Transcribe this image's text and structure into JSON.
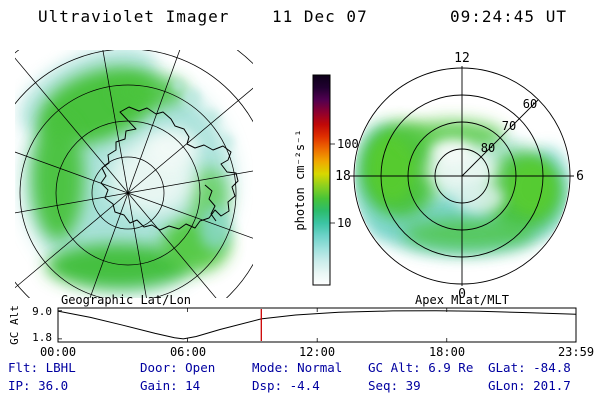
{
  "header": {
    "title": "Ultraviolet Imager",
    "date": "11 Dec 07",
    "time": "09:24:45 UT"
  },
  "colorbar": {
    "label": "photon cm⁻²s⁻¹",
    "colors_bottom_to_top": [
      "#ffffff",
      "#e8f6f4",
      "#c8ecea",
      "#9ce0dc",
      "#6cd2c8",
      "#3cc4a4",
      "#2cbc6c",
      "#48c438",
      "#8cd020",
      "#d8d800",
      "#f0a800",
      "#ee6c00",
      "#e03000",
      "#c00808",
      "#8c0030",
      "#500050",
      "#200030",
      "#0c0018"
    ]
  },
  "status": {
    "text_color": "#0000a0",
    "rows": [
      [
        "Flt: LBHL",
        "Door: Open",
        "Mode: Normal",
        "GC Alt: 6.9 Re",
        "GLat: -84.8"
      ],
      [
        "IP: 36.0",
        "Gain: 14",
        "Dsp:  -4.4",
        "Seq: 39",
        "GLon: 201.7"
      ]
    ]
  },
  "chart_data": [
    {
      "type": "heatmap",
      "title": "Geographic Lat/Lon",
      "description": "UVI auroral emission image mapped in geographic latitude/longitude over the southern polar cap; bright green band of emission around the auroral oval with cyan fringes, Antarctica coastline overlaid",
      "colorbar_label": "photon cm⁻²s⁻¹",
      "colorbar_ticks": [
        100,
        10
      ],
      "legend_position": "center-colorbar",
      "grid": true
    },
    {
      "type": "heatmap",
      "title": "Apex MLat/MLT",
      "description": "Same auroral image in Apex magnetic latitude / magnetic local time dial; oval spans roughly 60-80 MLat, brightest near dawn and dusk sectors",
      "mlat_rings": [
        80,
        70,
        60
      ],
      "mlt_labels": [
        "12",
        "18",
        "6",
        "0"
      ],
      "grid": true
    },
    {
      "type": "line",
      "title": "GC Alt",
      "ylabel": "GC Alt",
      "yticks": [
        "9.0",
        "1.8"
      ],
      "ytick_values": [
        9.0,
        1.8
      ],
      "xticks": [
        "00:00",
        "06:00",
        "12:00",
        "18:00",
        "23:59"
      ],
      "xtick_hours": [
        0,
        6,
        12,
        18,
        23.983
      ],
      "ylim": [
        1.8,
        9.0
      ],
      "x_hours": [
        0,
        1.5,
        3,
        4.5,
        5.4,
        5.8,
        6.4,
        7.5,
        9.41,
        11,
        13,
        15.5,
        17.5,
        19.5,
        21.5,
        23.983
      ],
      "y_re": [
        8.9,
        7.3,
        5.3,
        3.2,
        2.1,
        1.8,
        2.4,
        4.2,
        6.9,
        7.9,
        8.6,
        8.95,
        9.0,
        8.85,
        8.55,
        8.1
      ],
      "marker": {
        "time_label": "09:24:45",
        "hours": 9.4125,
        "value_re": 6.9,
        "color": "#cc0000"
      }
    }
  ]
}
